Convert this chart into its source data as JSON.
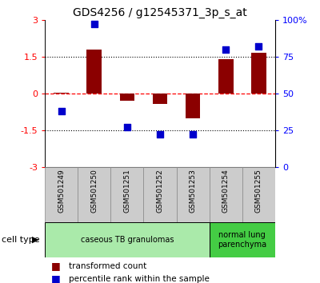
{
  "title": "GDS4256 / g12545371_3p_s_at",
  "samples": [
    "GSM501249",
    "GSM501250",
    "GSM501251",
    "GSM501252",
    "GSM501253",
    "GSM501254",
    "GSM501255"
  ],
  "transformed_count": [
    0.02,
    1.78,
    -0.3,
    -0.42,
    -1.0,
    1.4,
    1.65
  ],
  "percentile_rank": [
    38,
    97,
    27,
    22,
    22,
    80,
    82
  ],
  "ylim_left": [
    -3,
    3
  ],
  "ylim_right": [
    0,
    100
  ],
  "yticks_left": [
    -3,
    -1.5,
    0,
    1.5,
    3
  ],
  "yticks_right": [
    0,
    25,
    50,
    75,
    100
  ],
  "ytick_labels_right": [
    "0",
    "25",
    "50",
    "75",
    "100%"
  ],
  "dotted_lines": [
    -1.5,
    1.5
  ],
  "bar_color": "#8B0000",
  "dot_color": "#0000CC",
  "cell_type_groups": [
    {
      "label": "caseous TB granulomas",
      "start": 0,
      "end": 4,
      "color": "#AAEAAA"
    },
    {
      "label": "normal lung\nparenchyma",
      "start": 5,
      "end": 6,
      "color": "#44CC44"
    }
  ],
  "cell_type_label": "cell type",
  "legend_items": [
    {
      "color": "#8B0000",
      "label": "transformed count"
    },
    {
      "color": "#0000CC",
      "label": "percentile rank within the sample"
    }
  ],
  "bar_width": 0.45,
  "dot_size": 40,
  "sample_box_color": "#CCCCCC",
  "sample_box_edge": "#888888"
}
